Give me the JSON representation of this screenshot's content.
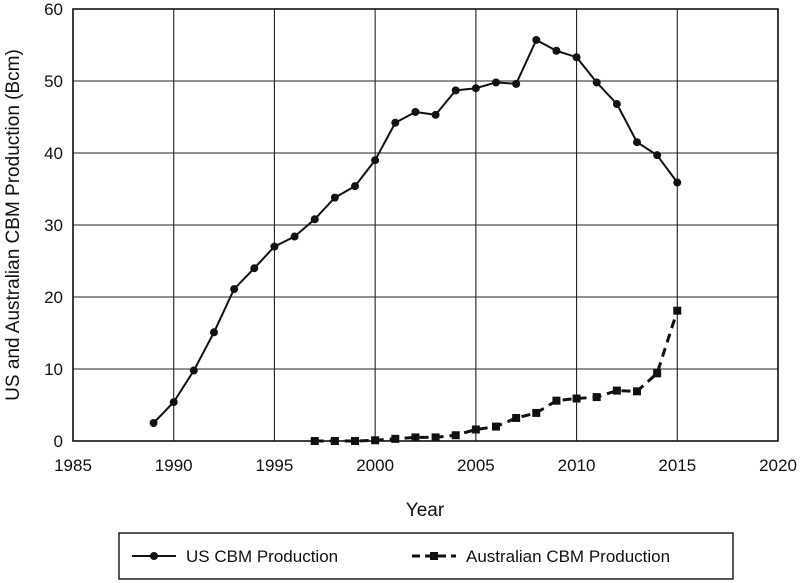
{
  "chart_data": {
    "type": "line",
    "title": "",
    "xlabel": "Year",
    "ylabel": "US and Australian CBM Production (Bcm)",
    "xlim": [
      1985,
      2020
    ],
    "ylim": [
      0,
      60
    ],
    "xticks": [
      1985,
      1990,
      1995,
      2000,
      2005,
      2010,
      2015,
      2020
    ],
    "yticks": [
      0,
      10,
      20,
      30,
      40,
      50,
      60
    ],
    "grid": true,
    "legend_position": "bottom",
    "series": [
      {
        "name": "US CBM Production",
        "style": "solid",
        "marker": "circle",
        "x": [
          1989,
          1990,
          1991,
          1992,
          1993,
          1994,
          1995,
          1996,
          1997,
          1998,
          1999,
          2000,
          2001,
          2002,
          2003,
          2004,
          2005,
          2006,
          2007,
          2008,
          2009,
          2010,
          2011,
          2012,
          2013,
          2014,
          2015
        ],
        "values": [
          2.5,
          5.4,
          9.8,
          15.1,
          21.1,
          24.0,
          27.0,
          28.4,
          30.8,
          33.8,
          35.4,
          39.0,
          44.2,
          45.7,
          45.3,
          48.7,
          49.0,
          49.8,
          49.6,
          55.7,
          54.2,
          53.3,
          49.8,
          46.8,
          41.5,
          39.7,
          35.9
        ]
      },
      {
        "name": "Australian CBM Production",
        "style": "dashed",
        "marker": "square",
        "x": [
          1997,
          1998,
          1999,
          2000,
          2001,
          2002,
          2003,
          2004,
          2005,
          2006,
          2007,
          2008,
          2009,
          2010,
          2011,
          2012,
          2013,
          2014,
          2015
        ],
        "values": [
          0.0,
          0.0,
          0.0,
          0.1,
          0.3,
          0.5,
          0.5,
          0.8,
          1.6,
          2.0,
          3.2,
          3.9,
          5.6,
          5.9,
          6.1,
          7.0,
          6.9,
          9.4,
          18.1
        ]
      }
    ]
  }
}
